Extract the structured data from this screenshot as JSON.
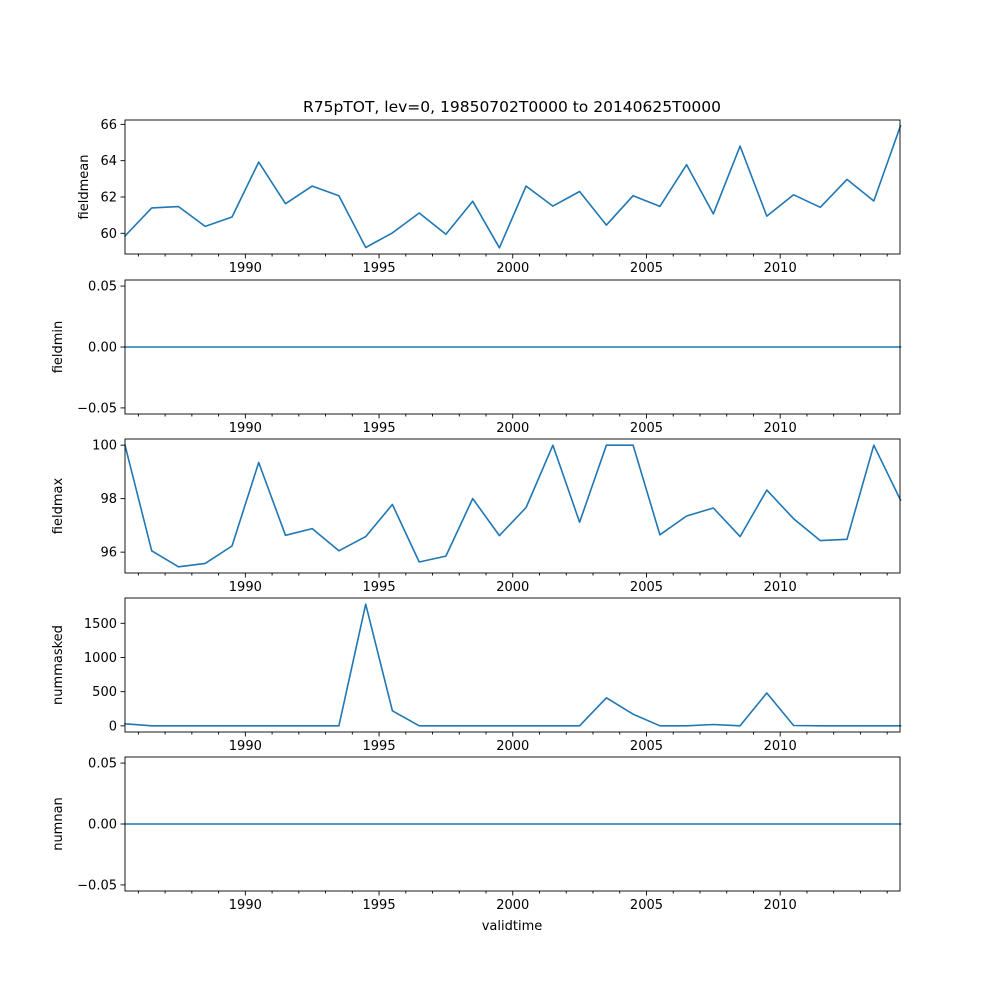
{
  "chart_data": {
    "type": "line",
    "title": "R75pTOT, lev=0, 19850702T0000 to 20140625T0000",
    "xlabel": "validtime",
    "x": [
      1985.5,
      1986.5,
      1987.5,
      1988.5,
      1989.5,
      1990.5,
      1991.5,
      1992.5,
      1993.5,
      1994.5,
      1995.5,
      1996.5,
      1997.5,
      1998.5,
      1999.5,
      2000.5,
      2001.5,
      2002.5,
      2003.5,
      2004.5,
      2005.5,
      2006.5,
      2007.5,
      2008.5,
      2009.5,
      2010.5,
      2011.5,
      2012.5,
      2013.5,
      2014.5
    ],
    "xlim": [
      1985.5,
      2014.48
    ],
    "x_major_ticks": [
      1990,
      1995,
      2000,
      2005,
      2010
    ],
    "x_major_tick_labels": [
      "1990",
      "1995",
      "2000",
      "2005",
      "2010"
    ],
    "x_minor_ticks": [
      1986,
      1987,
      1988,
      1989,
      1991,
      1992,
      1993,
      1994,
      1996,
      1997,
      1998,
      1999,
      2001,
      2002,
      2003,
      2004,
      2006,
      2007,
      2008,
      2009,
      2011,
      2012,
      2013,
      2014
    ],
    "line_color": "#1f77b4",
    "subplots": [
      {
        "ylabel": "fieldmean",
        "ylim": [
          58.86,
          66.24
        ],
        "yticks": [
          60,
          62,
          64,
          66
        ],
        "ytick_labels": [
          "60",
          "62",
          "64",
          "66"
        ],
        "values": [
          59.85,
          61.4,
          61.47,
          60.38,
          60.9,
          63.92,
          61.63,
          62.6,
          62.07,
          59.22,
          60.02,
          61.12,
          59.95,
          61.77,
          59.2,
          62.6,
          61.5,
          62.3,
          60.45,
          62.07,
          61.48,
          63.78,
          61.07,
          64.8,
          60.95,
          62.12,
          61.43,
          62.97,
          61.78,
          65.92
        ]
      },
      {
        "ylabel": "fieldmin",
        "ylim": [
          -0.055,
          0.055
        ],
        "yticks": [
          -0.05,
          0,
          0.05
        ],
        "ytick_labels": [
          "−0.05",
          "0.00",
          "0.05"
        ],
        "values": [
          0,
          0,
          0,
          0,
          0,
          0,
          0,
          0,
          0,
          0,
          0,
          0,
          0,
          0,
          0,
          0,
          0,
          0,
          0,
          0,
          0,
          0,
          0,
          0,
          0,
          0,
          0,
          0,
          0,
          0
        ]
      },
      {
        "ylabel": "fieldmax",
        "ylim": [
          95.22,
          100.23
        ],
        "yticks": [
          96,
          98,
          100
        ],
        "ytick_labels": [
          "96",
          "98",
          "100"
        ],
        "values": [
          100.0,
          96.05,
          95.45,
          95.58,
          96.23,
          99.35,
          96.63,
          96.88,
          96.05,
          96.58,
          97.78,
          95.63,
          95.85,
          98.0,
          96.62,
          97.67,
          100.0,
          97.12,
          100.0,
          100.0,
          96.65,
          97.35,
          97.65,
          96.58,
          98.32,
          97.25,
          96.43,
          96.48,
          100.0,
          97.95
        ]
      },
      {
        "ylabel": "nummasked",
        "ylim": [
          -90,
          1870
        ],
        "yticks": [
          0,
          500,
          1000,
          1500
        ],
        "ytick_labels": [
          "0",
          "500",
          "1000",
          "1500"
        ],
        "values": [
          30,
          0,
          0,
          0,
          0,
          0,
          0,
          0,
          0,
          1780,
          220,
          0,
          0,
          0,
          0,
          0,
          0,
          0,
          410,
          170,
          0,
          0,
          20,
          0,
          480,
          5,
          0,
          0,
          0,
          0
        ]
      },
      {
        "ylabel": "numnan",
        "ylim": [
          -0.055,
          0.055
        ],
        "yticks": [
          -0.05,
          0,
          0.05
        ],
        "ytick_labels": [
          "−0.05",
          "0.00",
          "0.05"
        ],
        "values": [
          0,
          0,
          0,
          0,
          0,
          0,
          0,
          0,
          0,
          0,
          0,
          0,
          0,
          0,
          0,
          0,
          0,
          0,
          0,
          0,
          0,
          0,
          0,
          0,
          0,
          0,
          0,
          0,
          0,
          0
        ]
      }
    ]
  }
}
